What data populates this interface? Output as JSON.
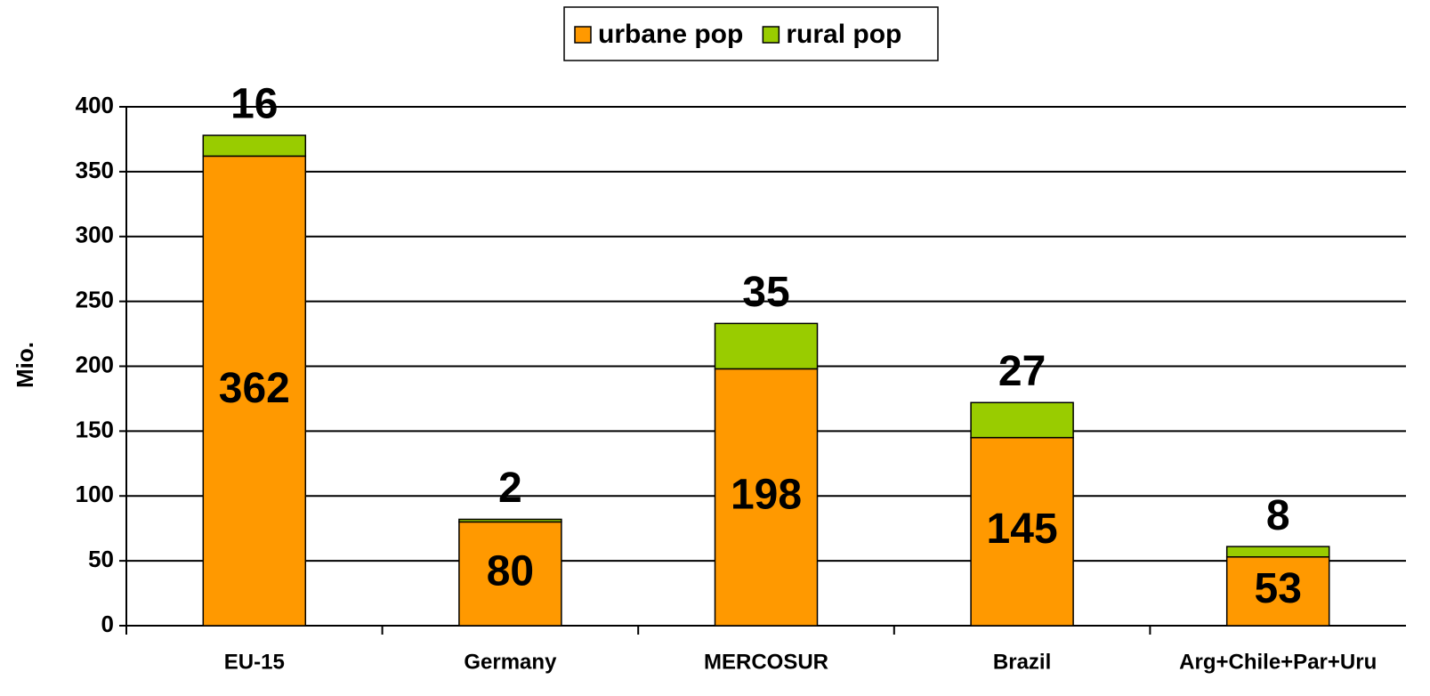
{
  "chart_data": {
    "type": "stacked_bar",
    "y_label": "Mio.",
    "categories": [
      "EU-15",
      "Germany",
      "MERCOSUR",
      "Brazil",
      "Arg+Chile+Par+Uru"
    ],
    "series": [
      {
        "name": "urbane pop",
        "color": "#ff9900",
        "values": [
          362,
          80,
          198,
          145,
          53
        ]
      },
      {
        "name": "rural pop",
        "color": "#99cc00",
        "values": [
          16,
          2,
          35,
          27,
          8
        ]
      }
    ],
    "ylim": [
      0,
      400
    ],
    "yticks": [
      0,
      50,
      100,
      150,
      200,
      250,
      300,
      350,
      400
    ],
    "grid": true,
    "legend": "top"
  }
}
